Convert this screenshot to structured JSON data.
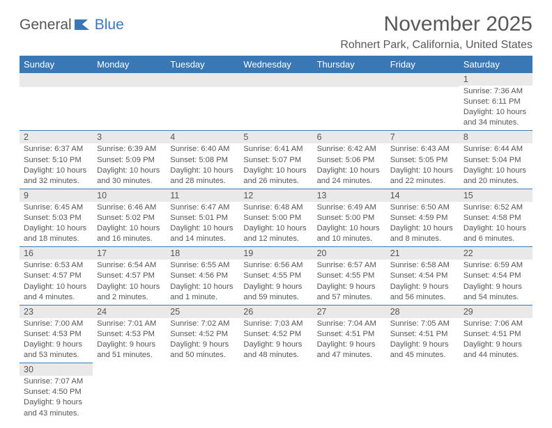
{
  "logo": {
    "part1": "General",
    "part2": "Blue"
  },
  "title": "November 2025",
  "location": "Rohnert Park, California, United States",
  "colors": {
    "accent": "#3a78b5",
    "header_bg": "#3a78b5",
    "header_text": "#ffffff",
    "day_bg": "#e9e9e9",
    "text": "#555555",
    "background": "#ffffff"
  },
  "typography": {
    "title_fontsize": 30,
    "location_fontsize": 16,
    "header_fontsize": 13,
    "body_fontsize": 11
  },
  "day_headers": [
    "Sunday",
    "Monday",
    "Tuesday",
    "Wednesday",
    "Thursday",
    "Friday",
    "Saturday"
  ],
  "weeks": [
    [
      null,
      null,
      null,
      null,
      null,
      null,
      {
        "n": "1",
        "sr": "Sunrise: 7:36 AM",
        "ss": "Sunset: 6:11 PM",
        "dl": "Daylight: 10 hours and 34 minutes."
      }
    ],
    [
      {
        "n": "2",
        "sr": "Sunrise: 6:37 AM",
        "ss": "Sunset: 5:10 PM",
        "dl": "Daylight: 10 hours and 32 minutes."
      },
      {
        "n": "3",
        "sr": "Sunrise: 6:39 AM",
        "ss": "Sunset: 5:09 PM",
        "dl": "Daylight: 10 hours and 30 minutes."
      },
      {
        "n": "4",
        "sr": "Sunrise: 6:40 AM",
        "ss": "Sunset: 5:08 PM",
        "dl": "Daylight: 10 hours and 28 minutes."
      },
      {
        "n": "5",
        "sr": "Sunrise: 6:41 AM",
        "ss": "Sunset: 5:07 PM",
        "dl": "Daylight: 10 hours and 26 minutes."
      },
      {
        "n": "6",
        "sr": "Sunrise: 6:42 AM",
        "ss": "Sunset: 5:06 PM",
        "dl": "Daylight: 10 hours and 24 minutes."
      },
      {
        "n": "7",
        "sr": "Sunrise: 6:43 AM",
        "ss": "Sunset: 5:05 PM",
        "dl": "Daylight: 10 hours and 22 minutes."
      },
      {
        "n": "8",
        "sr": "Sunrise: 6:44 AM",
        "ss": "Sunset: 5:04 PM",
        "dl": "Daylight: 10 hours and 20 minutes."
      }
    ],
    [
      {
        "n": "9",
        "sr": "Sunrise: 6:45 AM",
        "ss": "Sunset: 5:03 PM",
        "dl": "Daylight: 10 hours and 18 minutes."
      },
      {
        "n": "10",
        "sr": "Sunrise: 6:46 AM",
        "ss": "Sunset: 5:02 PM",
        "dl": "Daylight: 10 hours and 16 minutes."
      },
      {
        "n": "11",
        "sr": "Sunrise: 6:47 AM",
        "ss": "Sunset: 5:01 PM",
        "dl": "Daylight: 10 hours and 14 minutes."
      },
      {
        "n": "12",
        "sr": "Sunrise: 6:48 AM",
        "ss": "Sunset: 5:00 PM",
        "dl": "Daylight: 10 hours and 12 minutes."
      },
      {
        "n": "13",
        "sr": "Sunrise: 6:49 AM",
        "ss": "Sunset: 5:00 PM",
        "dl": "Daylight: 10 hours and 10 minutes."
      },
      {
        "n": "14",
        "sr": "Sunrise: 6:50 AM",
        "ss": "Sunset: 4:59 PM",
        "dl": "Daylight: 10 hours and 8 minutes."
      },
      {
        "n": "15",
        "sr": "Sunrise: 6:52 AM",
        "ss": "Sunset: 4:58 PM",
        "dl": "Daylight: 10 hours and 6 minutes."
      }
    ],
    [
      {
        "n": "16",
        "sr": "Sunrise: 6:53 AM",
        "ss": "Sunset: 4:57 PM",
        "dl": "Daylight: 10 hours and 4 minutes."
      },
      {
        "n": "17",
        "sr": "Sunrise: 6:54 AM",
        "ss": "Sunset: 4:57 PM",
        "dl": "Daylight: 10 hours and 2 minutes."
      },
      {
        "n": "18",
        "sr": "Sunrise: 6:55 AM",
        "ss": "Sunset: 4:56 PM",
        "dl": "Daylight: 10 hours and 1 minute."
      },
      {
        "n": "19",
        "sr": "Sunrise: 6:56 AM",
        "ss": "Sunset: 4:55 PM",
        "dl": "Daylight: 9 hours and 59 minutes."
      },
      {
        "n": "20",
        "sr": "Sunrise: 6:57 AM",
        "ss": "Sunset: 4:55 PM",
        "dl": "Daylight: 9 hours and 57 minutes."
      },
      {
        "n": "21",
        "sr": "Sunrise: 6:58 AM",
        "ss": "Sunset: 4:54 PM",
        "dl": "Daylight: 9 hours and 56 minutes."
      },
      {
        "n": "22",
        "sr": "Sunrise: 6:59 AM",
        "ss": "Sunset: 4:54 PM",
        "dl": "Daylight: 9 hours and 54 minutes."
      }
    ],
    [
      {
        "n": "23",
        "sr": "Sunrise: 7:00 AM",
        "ss": "Sunset: 4:53 PM",
        "dl": "Daylight: 9 hours and 53 minutes."
      },
      {
        "n": "24",
        "sr": "Sunrise: 7:01 AM",
        "ss": "Sunset: 4:53 PM",
        "dl": "Daylight: 9 hours and 51 minutes."
      },
      {
        "n": "25",
        "sr": "Sunrise: 7:02 AM",
        "ss": "Sunset: 4:52 PM",
        "dl": "Daylight: 9 hours and 50 minutes."
      },
      {
        "n": "26",
        "sr": "Sunrise: 7:03 AM",
        "ss": "Sunset: 4:52 PM",
        "dl": "Daylight: 9 hours and 48 minutes."
      },
      {
        "n": "27",
        "sr": "Sunrise: 7:04 AM",
        "ss": "Sunset: 4:51 PM",
        "dl": "Daylight: 9 hours and 47 minutes."
      },
      {
        "n": "28",
        "sr": "Sunrise: 7:05 AM",
        "ss": "Sunset: 4:51 PM",
        "dl": "Daylight: 9 hours and 45 minutes."
      },
      {
        "n": "29",
        "sr": "Sunrise: 7:06 AM",
        "ss": "Sunset: 4:51 PM",
        "dl": "Daylight: 9 hours and 44 minutes."
      }
    ],
    [
      {
        "n": "30",
        "sr": "Sunrise: 7:07 AM",
        "ss": "Sunset: 4:50 PM",
        "dl": "Daylight: 9 hours and 43 minutes."
      },
      null,
      null,
      null,
      null,
      null,
      null
    ]
  ]
}
